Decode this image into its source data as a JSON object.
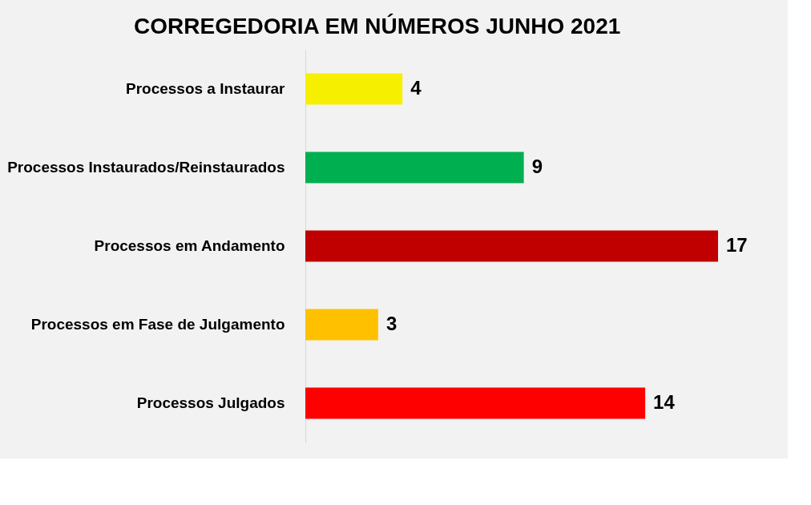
{
  "chart_data": {
    "type": "bar",
    "orientation": "horizontal",
    "title": "CORREGEDORIA EM NÚMEROS JUNHO 2021",
    "categories": [
      "Processos a Instaurar",
      "Processos Instaurados/Reinstaurados",
      "Processos em Andamento",
      "Processos em Fase de Julgamento",
      "Processos Julgados"
    ],
    "values": [
      4,
      9,
      17,
      3,
      14
    ],
    "colors": [
      "#f7ef00",
      "#00b050",
      "#c00000",
      "#ffc000",
      "#ff0000"
    ],
    "data_labels": true
  }
}
